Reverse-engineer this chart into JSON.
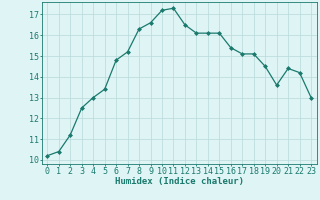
{
  "x": [
    0,
    1,
    2,
    3,
    4,
    5,
    6,
    7,
    8,
    9,
    10,
    11,
    12,
    13,
    14,
    15,
    16,
    17,
    18,
    19,
    20,
    21,
    22,
    23
  ],
  "y": [
    10.2,
    10.4,
    11.2,
    12.5,
    13.0,
    13.4,
    14.8,
    15.2,
    16.3,
    16.6,
    17.2,
    17.3,
    16.5,
    16.1,
    16.1,
    16.1,
    15.4,
    15.1,
    15.1,
    14.5,
    13.6,
    14.4,
    14.2,
    13.0
  ],
  "line_color": "#1a7a6e",
  "marker": "D",
  "marker_size": 2.0,
  "bg_color": "#dff4f4",
  "grid_color": "#b8dada",
  "xlabel": "Humidex (Indice chaleur)",
  "ylim": [
    9.8,
    17.6
  ],
  "xlim": [
    -0.5,
    23.5
  ],
  "yticks": [
    10,
    11,
    12,
    13,
    14,
    15,
    16,
    17
  ],
  "xticks": [
    0,
    1,
    2,
    3,
    4,
    5,
    6,
    7,
    8,
    9,
    10,
    11,
    12,
    13,
    14,
    15,
    16,
    17,
    18,
    19,
    20,
    21,
    22,
    23
  ],
  "label_fontsize": 6.5,
  "tick_fontsize": 6.0,
  "linewidth": 0.9
}
